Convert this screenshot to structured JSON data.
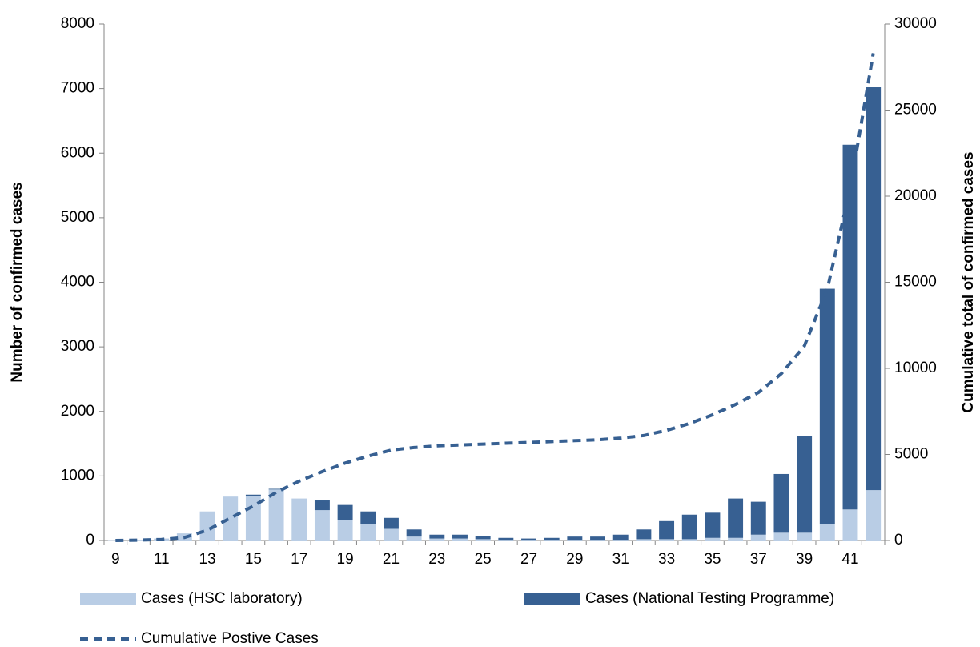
{
  "chart_data": {
    "type": "bar-line",
    "y_label": "Number of confirmed cases",
    "y2_label": "Cumulative total of confirmed cases",
    "categories": [
      9,
      null,
      11,
      null,
      13,
      null,
      15,
      null,
      17,
      null,
      19,
      null,
      21,
      null,
      23,
      null,
      25,
      null,
      27,
      null,
      29,
      null,
      31,
      null,
      33,
      null,
      35,
      null,
      37,
      null,
      39,
      null,
      41,
      null
    ],
    "stacked": true,
    "series": [
      {
        "name": "Cases (HSC laboratory)",
        "type": "bar",
        "color": "#b9cde5",
        "values": [
          5,
          10,
          30,
          110,
          450,
          680,
          690,
          790,
          650,
          470,
          320,
          250,
          180,
          60,
          30,
          30,
          20,
          10,
          10,
          10,
          10,
          10,
          10,
          20,
          20,
          20,
          40,
          40,
          90,
          120,
          120,
          250,
          480,
          780
        ]
      },
      {
        "name": "Cases (National Testing Programme)",
        "type": "bar",
        "color": "#376092",
        "values": [
          0,
          0,
          0,
          0,
          0,
          0,
          20,
          10,
          0,
          150,
          230,
          200,
          170,
          110,
          60,
          60,
          50,
          30,
          20,
          30,
          50,
          50,
          80,
          150,
          280,
          380,
          390,
          610,
          510,
          910,
          1500,
          3650,
          5650,
          6240
        ]
      },
      {
        "name": "Cumulative Postive Cases",
        "type": "line",
        "axis": "y2",
        "color": "#376092",
        "dashed": true,
        "values": [
          0,
          20,
          60,
          170,
          600,
          1300,
          2000,
          2800,
          3450,
          4000,
          4500,
          4900,
          5250,
          5400,
          5500,
          5550,
          5600,
          5650,
          5700,
          5750,
          5800,
          5850,
          5950,
          6100,
          6400,
          6800,
          7300,
          7900,
          8600,
          9700,
          11300,
          14600,
          20500,
          28300
        ]
      }
    ],
    "ylim": [
      0,
      8000
    ],
    "yticks": [
      0,
      1000,
      2000,
      3000,
      4000,
      5000,
      6000,
      7000,
      8000
    ],
    "y2lim": [
      0,
      30000
    ],
    "y2ticks": [
      0,
      5000,
      10000,
      15000,
      20000,
      25000,
      30000
    ]
  }
}
